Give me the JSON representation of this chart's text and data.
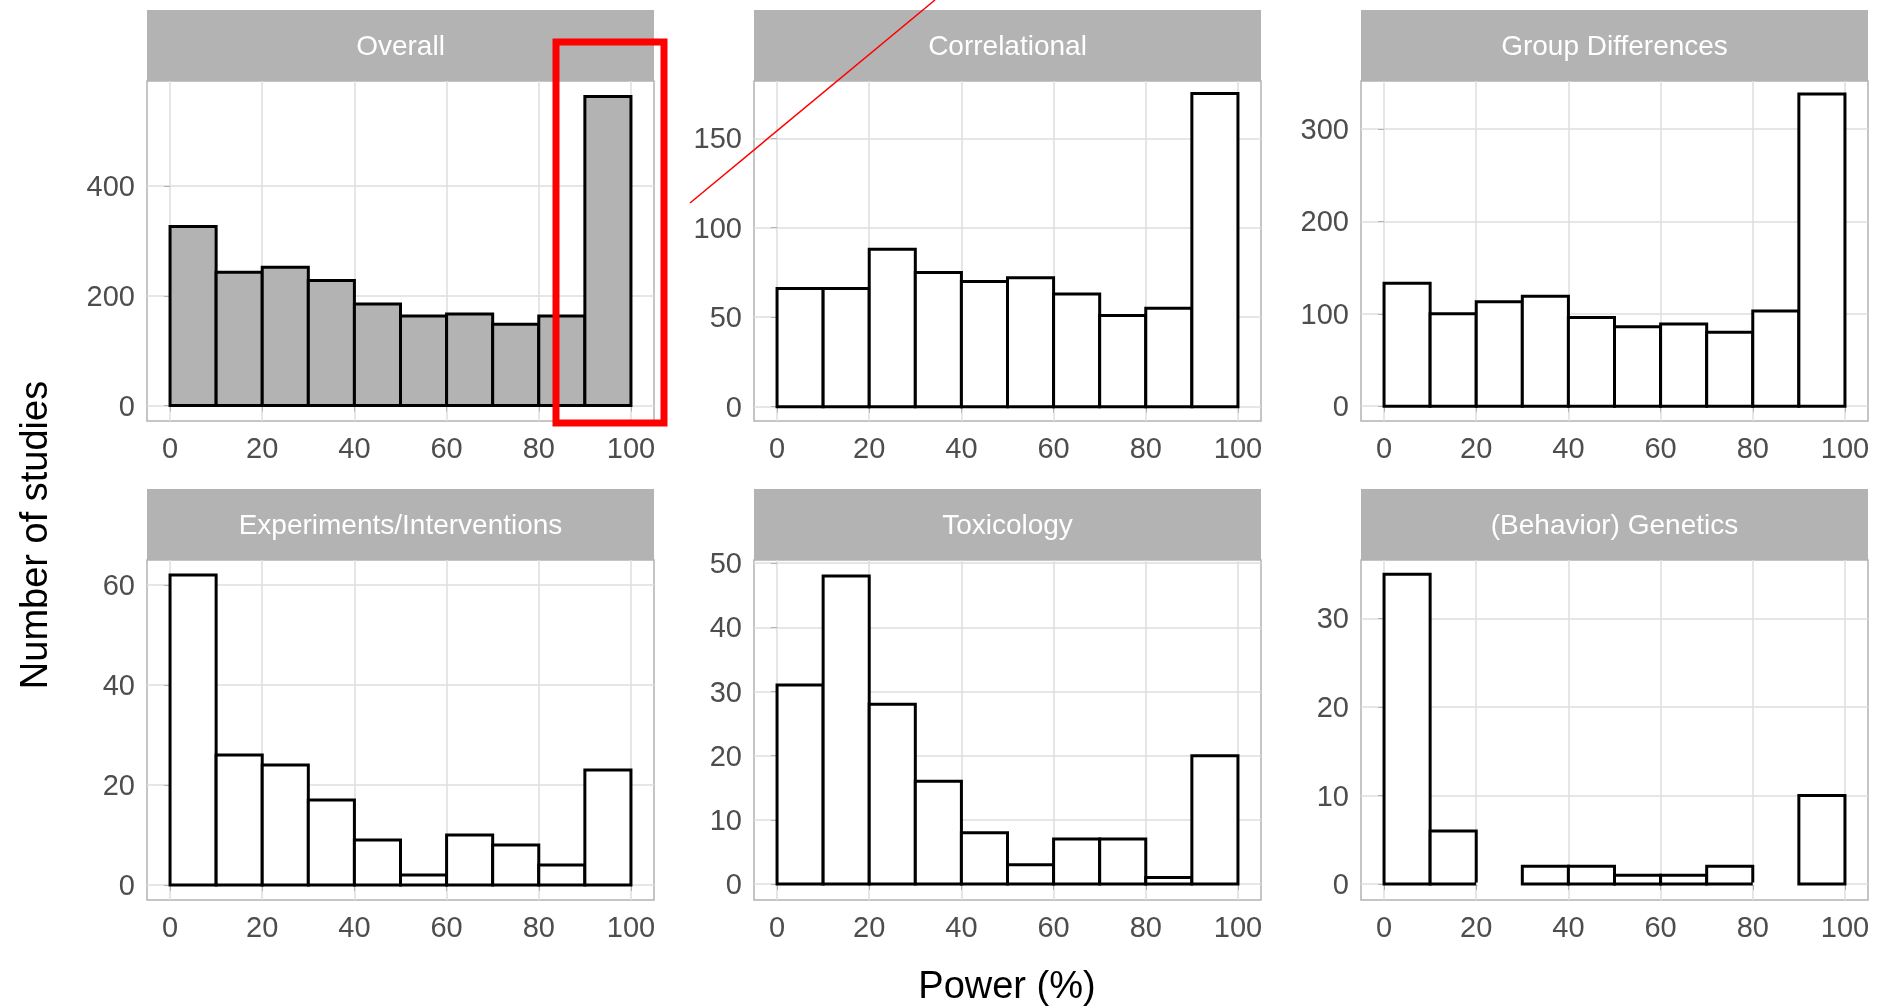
{
  "chart_data": [
    {
      "type": "histogram",
      "title": "Overall",
      "ylabel": "Number of studies",
      "bins": [
        0,
        10,
        20,
        30,
        40,
        50,
        60,
        70,
        80,
        90,
        100
      ],
      "values": [
        326,
        243,
        252,
        228,
        185,
        163,
        167,
        148,
        163,
        563
      ],
      "color": "#b3b3b3",
      "xlim": [
        -5,
        105
      ],
      "xticks": [
        0,
        20,
        40,
        60,
        80,
        100
      ],
      "ylim": [
        -28,
        591
      ],
      "yticks": [
        0,
        200,
        400
      ],
      "grid": true
    },
    {
      "type": "histogram",
      "title": "Correlational",
      "bins": [
        0,
        10,
        20,
        30,
        40,
        50,
        60,
        70,
        80,
        90,
        100
      ],
      "values": [
        66,
        66,
        88,
        75,
        70,
        72,
        63,
        51,
        55,
        175
      ],
      "color": "#ffffff",
      "xlim": [
        -5,
        105
      ],
      "xticks": [
        0,
        20,
        40,
        60,
        80,
        100
      ],
      "ylim": [
        -8,
        182
      ],
      "yticks": [
        0,
        50,
        100,
        150
      ],
      "grid": true
    },
    {
      "type": "histogram",
      "title": "Group Differences",
      "bins": [
        0,
        10,
        20,
        30,
        40,
        50,
        60,
        70,
        80,
        90,
        100
      ],
      "values": [
        133,
        100,
        113,
        119,
        96,
        86,
        89,
        80,
        103,
        338
      ],
      "color": "#ffffff",
      "xlim": [
        -5,
        105
      ],
      "xticks": [
        0,
        20,
        40,
        60,
        80,
        100
      ],
      "ylim": [
        -16,
        352
      ],
      "yticks": [
        0,
        100,
        200,
        300
      ],
      "grid": true
    },
    {
      "type": "histogram",
      "title": "Experiments/Interventions",
      "bins": [
        0,
        10,
        20,
        30,
        40,
        50,
        60,
        70,
        80,
        90,
        100
      ],
      "values": [
        62,
        26,
        24,
        17,
        9,
        2,
        10,
        8,
        4,
        23
      ],
      "color": "#ffffff",
      "xlim": [
        -5,
        105
      ],
      "xticks": [
        0,
        20,
        40,
        60,
        80,
        100
      ],
      "ylim": [
        -3,
        65
      ],
      "yticks": [
        0,
        20,
        40,
        60
      ],
      "grid": true
    },
    {
      "type": "histogram",
      "title": "Toxicology",
      "xlabel": "Power (%)",
      "bins": [
        0,
        10,
        20,
        30,
        40,
        50,
        60,
        70,
        80,
        90,
        100
      ],
      "values": [
        31,
        48,
        28,
        16,
        8,
        3,
        7,
        7,
        1,
        20
      ],
      "color": "#ffffff",
      "xlim": [
        -5,
        105
      ],
      "xticks": [
        0,
        20,
        40,
        60,
        80,
        100
      ],
      "ylim": [
        -2.5,
        50.5
      ],
      "yticks": [
        0,
        10,
        20,
        30,
        40,
        50
      ],
      "grid": true
    },
    {
      "type": "histogram",
      "title": "(Behavior) Genetics",
      "bins": [
        0,
        10,
        20,
        30,
        40,
        50,
        60,
        70,
        80,
        90,
        100
      ],
      "values": [
        35,
        6,
        0,
        2,
        2,
        1,
        1,
        2,
        0,
        10
      ],
      "color": "#ffffff",
      "xlim": [
        -5,
        105
      ],
      "xticks": [
        0,
        20,
        40,
        60,
        80,
        100
      ],
      "ylim": [
        -1.8,
        36.6
      ],
      "yticks": [
        0,
        10,
        20,
        30
      ],
      "grid": true
    }
  ]
}
